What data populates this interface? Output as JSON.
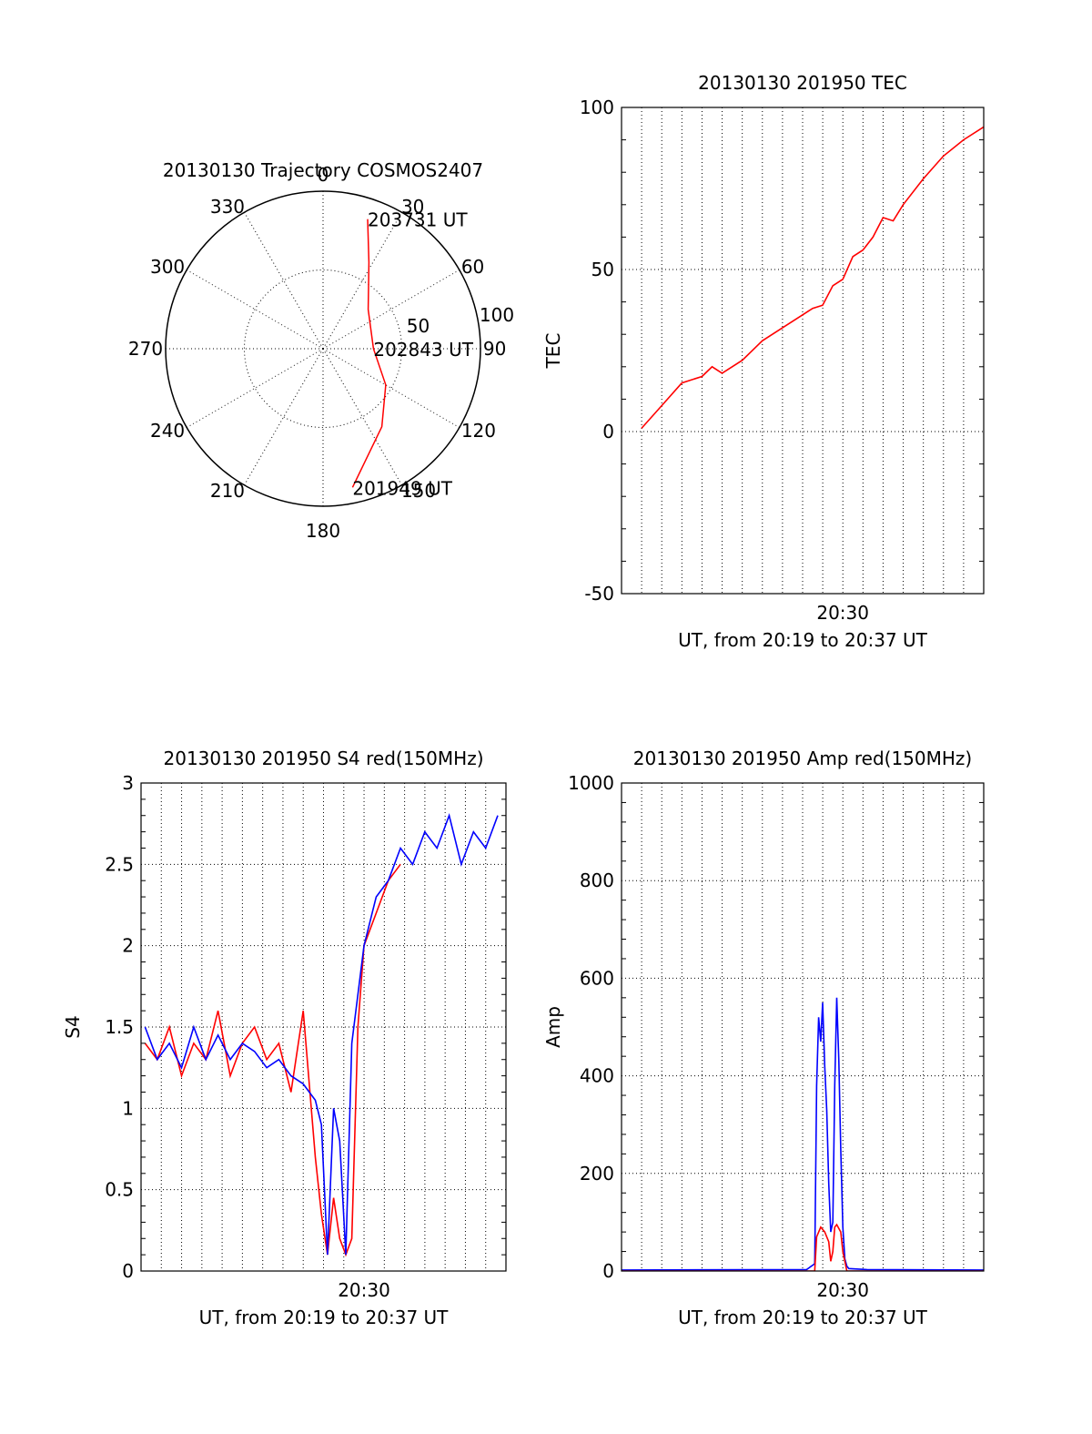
{
  "page": {
    "background": "#ffffff"
  },
  "colors": {
    "red": "#ff0000",
    "blue": "#0000ff",
    "axis": "#000000",
    "grid": "#000000"
  },
  "chart_data": [
    {
      "id": "trajectory",
      "type": "polar",
      "title": "20130130 Trajectory COSMOS2407",
      "radial_range": [
        0,
        100
      ],
      "radial_ticks": [
        50,
        100
      ],
      "angle_labels": [
        "0",
        "30",
        "60",
        "90",
        "120",
        "150",
        "180",
        "210",
        "240",
        "270",
        "300",
        "330"
      ],
      "grid": true,
      "series": [
        {
          "color": "red",
          "points": [
            {
              "az": 19,
              "r": 87
            },
            {
              "az": 28,
              "r": 62
            },
            {
              "az": 49,
              "r": 38
            },
            {
              "az": 90,
              "r": 32
            },
            {
              "az": 120,
              "r": 46
            },
            {
              "az": 143,
              "r": 62
            },
            {
              "az": 168,
              "r": 90
            }
          ]
        }
      ],
      "time_labels": [
        {
          "text": "203731 UT",
          "az": 19,
          "r": 87
        },
        {
          "text": "202843 UT",
          "az": 90,
          "r": 32
        },
        {
          "text": "201949 UT",
          "az": 168,
          "r": 90
        }
      ]
    },
    {
      "id": "tec",
      "type": "line",
      "title": "20130130 201950 TEC",
      "xlabel": "UT, from 20:19 to 20:37 UT",
      "ylabel": "TEC",
      "xlim": [
        20.3167,
        20.6167
      ],
      "ylim": [
        -50,
        100
      ],
      "yticks": [
        -50,
        0,
        50,
        100
      ],
      "xticks": [
        {
          "value": 20.5,
          "label": "20:30"
        }
      ],
      "grid": true,
      "series": [
        {
          "color": "red",
          "x": [
            20.3333,
            20.35,
            20.3667,
            20.3833,
            20.3917,
            20.4,
            20.4167,
            20.4333,
            20.45,
            20.4667,
            20.475,
            20.4833,
            20.4917,
            20.5,
            20.5083,
            20.5167,
            20.525,
            20.5333,
            20.5417,
            20.55,
            20.5667,
            20.5833,
            20.6,
            20.6167
          ],
          "y": [
            1,
            8,
            15,
            17,
            20,
            18,
            22,
            28,
            32,
            36,
            38,
            39,
            45,
            47,
            54,
            56,
            60,
            66,
            65,
            70,
            78,
            85,
            90,
            94
          ]
        }
      ]
    },
    {
      "id": "s4",
      "type": "line",
      "title": "20130130 201950 S4 red(150MHz)",
      "xlabel": "UT, from 20:19 to 20:37 UT",
      "ylabel": "S4",
      "xlim": [
        20.3167,
        20.6167
      ],
      "ylim": [
        0,
        3
      ],
      "yticks": [
        0,
        0.5,
        1,
        1.5,
        2,
        2.5,
        3
      ],
      "xticks": [
        {
          "value": 20.5,
          "label": "20:30"
        }
      ],
      "grid": true,
      "series": [
        {
          "color": "red",
          "x": [
            20.32,
            20.33,
            20.34,
            20.35,
            20.36,
            20.37,
            20.38,
            20.39,
            20.4,
            20.41,
            20.42,
            20.43,
            20.44,
            20.45,
            20.46,
            20.465,
            20.47,
            20.475,
            20.48,
            20.485,
            20.49,
            20.495,
            20.5,
            20.51,
            20.52,
            20.53
          ],
          "y": [
            1.4,
            1.3,
            1.5,
            1.2,
            1.4,
            1.3,
            1.6,
            1.2,
            1.4,
            1.5,
            1.3,
            1.4,
            1.1,
            1.6,
            0.7,
            0.35,
            0.1,
            0.45,
            0.2,
            0.1,
            0.2,
            1.5,
            2.0,
            2.2,
            2.4,
            2.5
          ]
        },
        {
          "color": "blue",
          "x": [
            20.32,
            20.33,
            20.34,
            20.35,
            20.36,
            20.37,
            20.38,
            20.39,
            20.4,
            20.41,
            20.42,
            20.43,
            20.44,
            20.45,
            20.46,
            20.465,
            20.47,
            20.475,
            20.48,
            20.485,
            20.49,
            20.5,
            20.51,
            20.52,
            20.53,
            20.54,
            20.55,
            20.56,
            20.57,
            20.58,
            20.59,
            20.6,
            20.61
          ],
          "y": [
            1.5,
            1.3,
            1.4,
            1.25,
            1.5,
            1.3,
            1.45,
            1.3,
            1.4,
            1.35,
            1.25,
            1.3,
            1.2,
            1.15,
            1.05,
            0.9,
            0.1,
            1.0,
            0.8,
            0.1,
            1.4,
            2.0,
            2.3,
            2.4,
            2.6,
            2.5,
            2.7,
            2.6,
            2.8,
            2.5,
            2.7,
            2.6,
            2.8
          ]
        }
      ]
    },
    {
      "id": "amp",
      "type": "line",
      "title": "20130130 201950 Amp red(150MHz)",
      "xlabel": "UT, from 20:19 to 20:37 UT",
      "ylabel": "Amp",
      "xlim": [
        20.3167,
        20.6167
      ],
      "ylim": [
        0,
        1000
      ],
      "yticks": [
        0,
        200,
        400,
        600,
        800,
        1000
      ],
      "xticks": [
        {
          "value": 20.5,
          "label": "20:30"
        }
      ],
      "grid": true,
      "series": [
        {
          "color": "blue",
          "x": [
            20.3167,
            20.47,
            20.4767,
            20.4783,
            20.48,
            20.4817,
            20.4833,
            20.485,
            20.4867,
            20.4883,
            20.49,
            20.4917,
            20.4933,
            20.495,
            20.4967,
            20.4983,
            20.5,
            20.5017,
            20.5033,
            20.505,
            20.52,
            20.6167
          ],
          "y": [
            2,
            3,
            15,
            380,
            520,
            470,
            550,
            420,
            330,
            180,
            80,
            100,
            380,
            560,
            430,
            250,
            90,
            25,
            10,
            5,
            3,
            2
          ]
        },
        {
          "color": "red",
          "x": [
            20.3167,
            20.4767,
            20.4783,
            20.4817,
            20.485,
            20.4883,
            20.49,
            20.4917,
            20.4933,
            20.495,
            20.4983,
            20.5,
            20.5033,
            20.6167
          ],
          "y": [
            0,
            0,
            70,
            90,
            80,
            60,
            20,
            40,
            90,
            95,
            80,
            40,
            0,
            0
          ]
        }
      ]
    }
  ]
}
